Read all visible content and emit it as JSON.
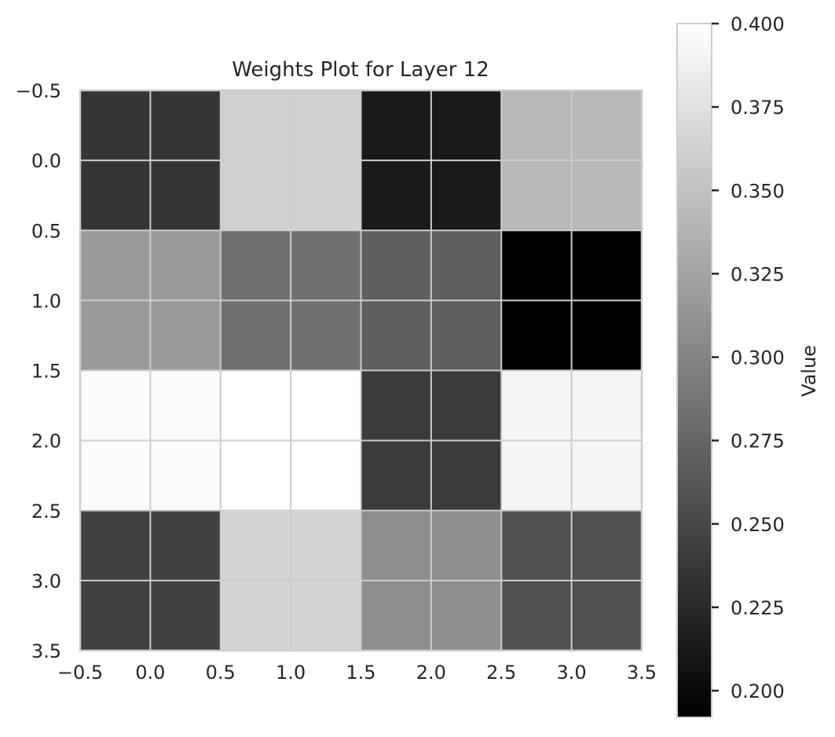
{
  "chart_data": {
    "type": "heatmap",
    "title": "Weights Plot for Layer 12",
    "xlabel": "",
    "ylabel": "",
    "xlim": [
      -0.5,
      3.5
    ],
    "ylim": [
      3.5,
      -0.5
    ],
    "x_ticks": [
      "−0.5",
      "0.0",
      "0.5",
      "1.0",
      "1.5",
      "2.0",
      "2.5",
      "3.0",
      "3.5"
    ],
    "y_ticks": [
      "−0.5",
      "0.0",
      "0.5",
      "1.0",
      "1.5",
      "2.0",
      "2.5",
      "3.0",
      "3.5"
    ],
    "x_tick_values": [
      -0.5,
      0.0,
      0.5,
      1.0,
      1.5,
      2.0,
      2.5,
      3.0,
      3.5
    ],
    "y_tick_values": [
      -0.5,
      0.0,
      0.5,
      1.0,
      1.5,
      2.0,
      2.5,
      3.0,
      3.5
    ],
    "grid": true,
    "colormap": "gray",
    "values": [
      [
        0.235,
        0.362,
        0.213,
        0.342
      ],
      [
        0.318,
        0.283,
        0.27,
        0.192
      ],
      [
        0.397,
        0.4,
        0.24,
        0.392
      ],
      [
        0.245,
        0.365,
        0.308,
        0.258
      ]
    ],
    "colorbar": {
      "label": "Value",
      "vmin": 0.192,
      "vmax": 0.4,
      "ticks": [
        "0.200",
        "0.225",
        "0.250",
        "0.275",
        "0.300",
        "0.325",
        "0.350",
        "0.375",
        "0.400"
      ],
      "tick_values": [
        0.2,
        0.225,
        0.25,
        0.275,
        0.3,
        0.325,
        0.35,
        0.375,
        0.4
      ]
    }
  }
}
